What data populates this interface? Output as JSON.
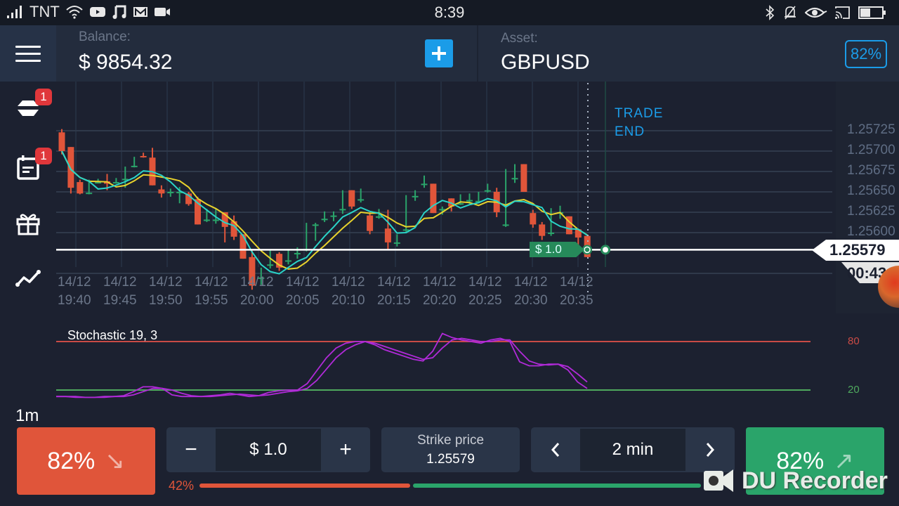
{
  "status_bar": {
    "carrier": "TNT",
    "time": "8:39",
    "left_icons": [
      "signal-icon",
      "wifi-icon",
      "youtube-icon",
      "music-icon",
      "gmail-icon",
      "video-camera-icon"
    ],
    "right_icons": [
      "bluetooth-icon",
      "mute-bell-icon",
      "eye-icon",
      "cast-icon",
      "battery-icon"
    ]
  },
  "header": {
    "balance_label": "Balance:",
    "balance_value": "$ 9854.32",
    "deposit_button": "+",
    "asset_label": "Asset:",
    "asset_value": "GBPUSD",
    "payout": "82%"
  },
  "sidebar": {
    "items": [
      {
        "name": "trades",
        "icon": "trades-stack-icon",
        "badge": "1"
      },
      {
        "name": "calendar",
        "icon": "calendar-icon",
        "badge": "1"
      },
      {
        "name": "bonus",
        "icon": "gift-icon",
        "badge": null
      },
      {
        "name": "indicators",
        "icon": "line-chart-icon",
        "badge": null
      }
    ],
    "timeframe": "1m"
  },
  "chart": {
    "colors": {
      "up": "#2aa46a",
      "down": "#e0553a",
      "ma_fast": "#2ad4c8",
      "ma_slow": "#e8d22c",
      "price_line": "#ffffff"
    },
    "price_axis": [
      "1.25725",
      "1.25700",
      "1.25675",
      "1.25650",
      "1.25625",
      "1.25600"
    ],
    "current_price": "1.25579",
    "timer": "00:43",
    "trade_end_label": [
      "TRADE",
      "END"
    ],
    "bet_marker": "$ 1.0",
    "time_axis": [
      {
        "date": "14/12",
        "time": "19:40"
      },
      {
        "date": "14/12",
        "time": "19:45"
      },
      {
        "date": "14/12",
        "time": "19:50"
      },
      {
        "date": "14/12",
        "time": "19:55"
      },
      {
        "date": "14/12",
        "time": "20:00"
      },
      {
        "date": "14/12",
        "time": "20:05"
      },
      {
        "date": "14/12",
        "time": "20:10"
      },
      {
        "date": "14/12",
        "time": "20:15"
      },
      {
        "date": "14/12",
        "time": "20:20"
      },
      {
        "date": "14/12",
        "time": "20:25"
      },
      {
        "date": "14/12",
        "time": "20:30"
      },
      {
        "date": "14/12",
        "time": "20:35"
      }
    ]
  },
  "chart_data": {
    "type": "candlestick",
    "title": "GBPUSD 1m",
    "ylim": [
      1.2554,
      1.2574
    ],
    "candles": [
      [
        1.25723,
        1.25727,
        1.257,
        1.25696
      ],
      [
        1.25705,
        1.25705,
        1.25655,
        1.25648
      ],
      [
        1.25662,
        1.25665,
        1.25648,
        1.25647
      ],
      [
        1.25649,
        1.25665,
        1.25649,
        1.25647
      ],
      [
        1.25661,
        1.25666,
        1.25662,
        1.25661
      ],
      [
        1.25663,
        1.25672,
        1.2566,
        1.25652
      ],
      [
        1.25662,
        1.25667,
        1.25662,
        1.2566
      ],
      [
        1.25666,
        1.25681,
        1.25666,
        1.25655
      ],
      [
        1.25682,
        1.25693,
        1.25682,
        1.2568
      ],
      [
        1.25694,
        1.25698,
        1.25693,
        1.25692
      ],
      [
        1.25692,
        1.25704,
        1.25658,
        1.25658
      ],
      [
        1.25653,
        1.25658,
        1.25648,
        1.25643
      ],
      [
        1.2565,
        1.25654,
        1.2565,
        1.25644
      ],
      [
        1.2565,
        1.25656,
        1.2565,
        1.25636
      ],
      [
        1.25648,
        1.2565,
        1.25635,
        1.25633
      ],
      [
        1.25641,
        1.25644,
        1.2561,
        1.2561
      ],
      [
        1.25616,
        1.25629,
        1.25616,
        1.25613
      ],
      [
        1.25616,
        1.25629,
        1.25616,
        1.25611
      ],
      [
        1.25625,
        1.25625,
        1.25607,
        1.25588
      ],
      [
        1.25614,
        1.25621,
        1.25595,
        1.25591
      ],
      [
        1.25598,
        1.25598,
        1.25568,
        1.25568
      ],
      [
        1.2557,
        1.25579,
        1.25535,
        1.2553
      ],
      [
        1.25545,
        1.25557,
        1.25545,
        1.25536
      ],
      [
        1.25561,
        1.25579,
        1.25561,
        1.25556
      ],
      [
        1.25574,
        1.25576,
        1.25557,
        1.25553
      ],
      [
        1.25566,
        1.2558,
        1.25566,
        1.25561
      ],
      [
        1.25575,
        1.25582,
        1.25575,
        1.25568
      ],
      [
        1.2558,
        1.25612,
        1.2558,
        1.25577
      ],
      [
        1.2561,
        1.25612,
        1.2561,
        1.2559
      ],
      [
        1.25617,
        1.25626,
        1.25617,
        1.25613
      ],
      [
        1.25621,
        1.25626,
        1.25621,
        1.25614
      ],
      [
        1.25629,
        1.25652,
        1.25629,
        1.25623
      ],
      [
        1.25652,
        1.25652,
        1.25632,
        1.25629
      ],
      [
        1.25641,
        1.25654,
        1.25641,
        1.25637
      ],
      [
        1.25621,
        1.25625,
        1.25602,
        1.25598
      ],
      [
        1.2562,
        1.25629,
        1.2562,
        1.25617
      ],
      [
        1.25605,
        1.25628,
        1.25588,
        1.25579
      ],
      [
        1.25588,
        1.25598,
        1.25588,
        1.25583
      ],
      [
        1.25604,
        1.25646,
        1.25604,
        1.25601
      ],
      [
        1.25645,
        1.25652,
        1.25645,
        1.25639
      ],
      [
        1.2566,
        1.2567,
        1.2566,
        1.25655
      ],
      [
        1.2566,
        1.2566,
        1.25624,
        1.25624
      ],
      [
        1.25629,
        1.25632,
        1.25629,
        1.25622
      ],
      [
        1.25642,
        1.25642,
        1.25632,
        1.25626
      ],
      [
        1.25636,
        1.25647,
        1.25636,
        1.25634
      ],
      [
        1.2564,
        1.25648,
        1.2564,
        1.25635
      ],
      [
        1.25639,
        1.2565,
        1.25639,
        1.25636
      ],
      [
        1.25652,
        1.2566,
        1.25652,
        1.25649
      ],
      [
        1.2565,
        1.25655,
        1.25625,
        1.25619
      ],
      [
        1.2561,
        1.25678,
        1.2561,
        1.25607
      ],
      [
        1.25667,
        1.25684,
        1.25667,
        1.25661
      ],
      [
        1.25684,
        1.25684,
        1.2565,
        1.2565
      ],
      [
        1.25624,
        1.25628,
        1.2561,
        1.25606
      ],
      [
        1.2561,
        1.25613,
        1.25596,
        1.25591
      ],
      [
        1.256,
        1.2563,
        1.256,
        1.25596
      ],
      [
        1.25625,
        1.25633,
        1.25625,
        1.25617
      ],
      [
        1.2562,
        1.2562,
        1.25598,
        1.25598
      ],
      [
        1.25604,
        1.25604,
        1.25594,
        1.25583
      ],
      [
        1.25596,
        1.25596,
        1.2557,
        1.2557
      ]
    ]
  },
  "stochastic": {
    "title": "Stochastic 19, 3",
    "upper_level": "80",
    "lower_level": "20",
    "colors": {
      "line": "#b02ad8",
      "upper": "#c94b46",
      "lower": "#4fa95e"
    },
    "k": [
      12,
      12,
      11,
      11,
      11,
      12,
      12,
      13,
      18,
      24,
      24,
      22,
      14,
      12,
      12,
      12,
      13,
      14,
      16,
      14,
      12,
      13,
      17,
      19,
      20,
      20,
      28,
      44,
      60,
      72,
      78,
      80,
      80,
      76,
      70,
      66,
      62,
      58,
      56,
      68,
      90,
      85,
      82,
      80,
      78,
      82,
      84,
      80,
      55,
      50,
      50,
      52,
      52,
      45,
      30,
      22
    ],
    "d": [
      12,
      12,
      12,
      11,
      11,
      11,
      12,
      12,
      14,
      18,
      22,
      22,
      20,
      16,
      13,
      12,
      12,
      13,
      14,
      15,
      14,
      13,
      14,
      16,
      18,
      19,
      22,
      32,
      46,
      60,
      70,
      76,
      80,
      78,
      74,
      70,
      66,
      62,
      58,
      60,
      72,
      82,
      84,
      82,
      80,
      80,
      82,
      82,
      68,
      56,
      52,
      51,
      52,
      49,
      40,
      30
    ]
  },
  "controls": {
    "put_label": "82%",
    "put_arrow": "↘",
    "amount_minus": "−",
    "amount_value": "$ 1.0",
    "amount_plus": "+",
    "strike_label": "Strike price",
    "strike_value": "1.25579",
    "time_prev": "‹",
    "time_value": "2 min",
    "time_next": "›",
    "call_label": "82%",
    "call_arrow": "↗",
    "sentiment_put_pct": "42%",
    "sentiment_put_value": 42
  },
  "watermark": {
    "text": "DU Recorder"
  }
}
